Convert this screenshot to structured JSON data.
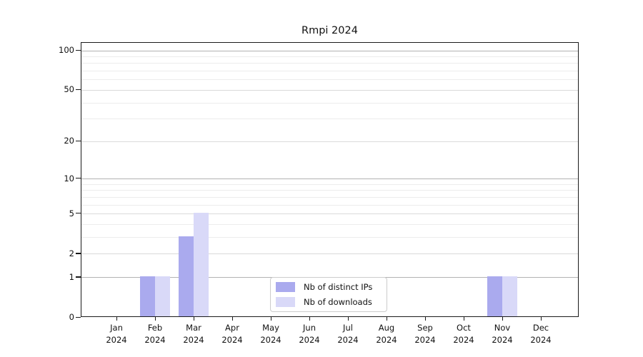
{
  "chart_data": {
    "type": "bar",
    "title": "Rmpi 2024",
    "scale": "log1p",
    "grid": true,
    "legend_position": "inside-bottom-center",
    "months": [
      "Jan",
      "Feb",
      "Mar",
      "Apr",
      "May",
      "Jun",
      "Jul",
      "Aug",
      "Sep",
      "Oct",
      "Nov",
      "Dec"
    ],
    "year_label": "2024",
    "series": [
      {
        "name": "Nb of distinct IPs",
        "color": "#aaaaee",
        "values": [
          0,
          1,
          3,
          0,
          0,
          0,
          0,
          0,
          0,
          0,
          1,
          0
        ]
      },
      {
        "name": "Nb of downloads",
        "color": "#d9d9f8",
        "values": [
          0,
          1,
          5,
          0,
          0,
          0,
          0,
          0,
          0,
          0,
          1,
          0
        ]
      }
    ],
    "y_axis": {
      "ticks": [
        0,
        1,
        2,
        5,
        10,
        20,
        50,
        100
      ],
      "strong_gridlines": [
        1,
        10,
        100
      ],
      "minor_gridlines": [
        3,
        4,
        6,
        7,
        8,
        9,
        30,
        40,
        60,
        70,
        80,
        90
      ],
      "max": 100,
      "ylim": [
        0,
        100
      ]
    }
  }
}
